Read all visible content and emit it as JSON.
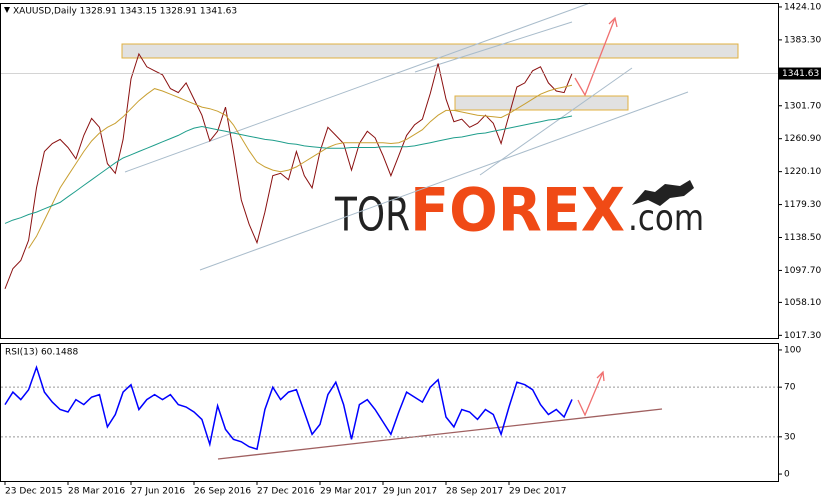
{
  "chart_data": [
    {
      "type": "line",
      "title": "XAUUSD,Daily 1328.91 1343.15 1328.91 1341.63",
      "ylim": [
        1014,
        1429
      ],
      "yticks": [
        {
          "value": 1424.1,
          "label": "1424.10"
        },
        {
          "value": 1383.3,
          "label": "1383.30"
        },
        {
          "value": 1301.7,
          "label": "1301.70"
        },
        {
          "value": 1260.9,
          "label": "1260.90"
        },
        {
          "value": 1220.1,
          "label": "1220.10"
        },
        {
          "value": 1179.3,
          "label": "1179.30"
        },
        {
          "value": 1138.5,
          "label": "1138.50"
        },
        {
          "value": 1097.7,
          "label": "1097.70"
        },
        {
          "value": 1058.1,
          "label": "1058.10"
        },
        {
          "value": 1017.3,
          "label": "1017.30"
        }
      ],
      "current_price": {
        "value": 1341.63,
        "label": "1341.63"
      },
      "watermark": {
        "part1": "TOR",
        "part2": "FOREX",
        "part3": ".com"
      },
      "series": [
        {
          "color": "#8a1010",
          "values": [
            1075,
            1100,
            1110,
            1135,
            1200,
            1245,
            1255,
            1260,
            1250,
            1236,
            1265,
            1286,
            1275,
            1230,
            1218,
            1260,
            1335,
            1366,
            1350,
            1345,
            1340,
            1323,
            1318,
            1330,
            1310,
            1290,
            1258,
            1270,
            1300,
            1245,
            1185,
            1155,
            1132,
            1170,
            1215,
            1218,
            1210,
            1245,
            1215,
            1200,
            1245,
            1275,
            1265,
            1255,
            1222,
            1255,
            1270,
            1262,
            1240,
            1215,
            1240,
            1265,
            1278,
            1285,
            1317,
            1354,
            1310,
            1282,
            1285,
            1275,
            1280,
            1290,
            1280,
            1255,
            1290,
            1325,
            1330,
            1345,
            1350,
            1330,
            1320,
            1318,
            1341.63
          ]
        },
        {
          "color": "#c9a032",
          "values": [
            null,
            null,
            null,
            1125,
            1140,
            1160,
            1180,
            1200,
            1215,
            1230,
            1245,
            1258,
            1268,
            1275,
            1280,
            1288,
            1298,
            1308,
            1316,
            1323,
            1320,
            1316,
            1312,
            1308,
            1304,
            1300,
            1298,
            1295,
            1290,
            1278,
            1262,
            1246,
            1232,
            1226,
            1222,
            1220,
            1222,
            1226,
            1232,
            1238,
            1244,
            1250,
            1254,
            1256,
            1256,
            1256,
            1256,
            1256,
            1256,
            1255,
            1256,
            1260,
            1266,
            1272,
            1282,
            1290,
            1296,
            1296,
            1294,
            1292,
            1290,
            1289,
            1288,
            1287,
            1292,
            1298,
            1304,
            1310,
            1316,
            1320,
            1323,
            1325,
            1327
          ]
        },
        {
          "color": "#1f9e8c",
          "values": [
            1156,
            1160,
            1163,
            1167,
            1170,
            1174,
            1178,
            1182,
            1189,
            1196,
            1203,
            1210,
            1217,
            1224,
            1231,
            1237,
            1241,
            1245,
            1249,
            1253,
            1257,
            1261,
            1265,
            1270,
            1274,
            1276,
            1274,
            1272,
            1270,
            1268,
            1266,
            1264,
            1262,
            1260,
            1259,
            1257,
            1255,
            1254,
            1252,
            1251,
            1250,
            1249,
            1249,
            1249,
            1250,
            1250,
            1250,
            1250,
            1251,
            1251,
            1251,
            1251,
            1252,
            1254,
            1256,
            1258,
            1260,
            1262,
            1263,
            1265,
            1267,
            1268,
            1270,
            1272,
            1274,
            1276,
            1278,
            1280,
            1282,
            1284,
            1285,
            1287,
            1289
          ]
        }
      ]
    },
    {
      "type": "line",
      "title": "RSI(13) 60.1488",
      "ylim": [
        -5.6,
        105.6
      ],
      "yticks": [
        100,
        70,
        30,
        0
      ],
      "categories": [
        "23 Dec 2015",
        null,
        null,
        null,
        null,
        null,
        null,
        null,
        "28 Mar 2016",
        null,
        null,
        null,
        null,
        null,
        null,
        null,
        "27 Jun 2016",
        null,
        null,
        null,
        null,
        null,
        null,
        null,
        "26 Sep 2016",
        null,
        null,
        null,
        null,
        null,
        null,
        null,
        "27 Dec 2016",
        null,
        null,
        null,
        null,
        null,
        null,
        null,
        "29 Mar 2017",
        null,
        null,
        null,
        null,
        null,
        null,
        null,
        "29 Jun 2017",
        null,
        null,
        null,
        null,
        null,
        null,
        null,
        "28 Sep 2017",
        null,
        null,
        null,
        null,
        null,
        null,
        null,
        "29 Dec 2017",
        null,
        null,
        null,
        null,
        null,
        null,
        null,
        null
      ],
      "series": [
        {
          "color": "#0000ff",
          "values": [
            56,
            66,
            60,
            68,
            86,
            66,
            58,
            52,
            50,
            60,
            56,
            62,
            64,
            38,
            48,
            66,
            72,
            52,
            60,
            64,
            60,
            64,
            56,
            54,
            50,
            44,
            24,
            55,
            36,
            28,
            26,
            22,
            20,
            52,
            70,
            60,
            66,
            68,
            50,
            32,
            40,
            64,
            74,
            56,
            28,
            56,
            60,
            52,
            42,
            32,
            50,
            66,
            62,
            58,
            70,
            76,
            46,
            38,
            52,
            50,
            44,
            52,
            48,
            32,
            54,
            74,
            72,
            68,
            56,
            48,
            52,
            46,
            60.1488
          ]
        }
      ]
    }
  ]
}
